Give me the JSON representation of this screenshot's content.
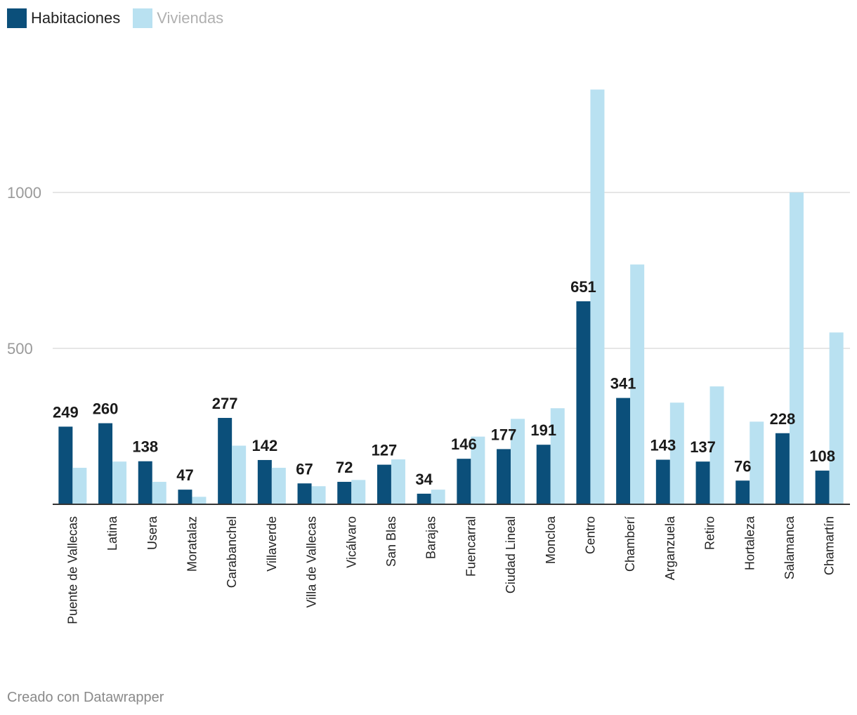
{
  "legend": {
    "series1": {
      "label": "Habitaciones",
      "color": "#0b4f7a",
      "text_color": "#222222"
    },
    "series2": {
      "label": "Viviendas",
      "color": "#b9e1f1",
      "text_color": "#b0b0b0"
    }
  },
  "footer": {
    "credit": "Creado con Datawrapper"
  },
  "chart_data": {
    "type": "bar",
    "title": "",
    "xlabel": "",
    "ylabel": "",
    "ylim": [
      0,
      1350
    ],
    "yticks": [
      500,
      1000
    ],
    "grid": true,
    "legend_position": "top-left",
    "categories": [
      "Puente de Vallecas",
      "Latina",
      "Usera",
      "Moratalaz",
      "Carabanchel",
      "Villaverde",
      "Villa de Vallecas",
      "Vicálvaro",
      "San Blas",
      "Barajas",
      "Fuencarral",
      "Ciudad Lineal",
      "Moncloa",
      "Centro",
      "Chamberí",
      "Arganzuela",
      "Retiro",
      "Hortaleza",
      "Salamanca",
      "Chamartín"
    ],
    "series": [
      {
        "name": "Habitaciones",
        "color": "#0b4f7a",
        "labeled": true,
        "values": [
          249,
          260,
          138,
          47,
          277,
          142,
          67,
          72,
          127,
          34,
          146,
          177,
          191,
          651,
          341,
          143,
          137,
          76,
          228,
          108
        ]
      },
      {
        "name": "Viviendas",
        "color": "#b9e1f1",
        "labeled": false,
        "values": [
          117,
          137,
          72,
          24,
          188,
          117,
          58,
          78,
          144,
          47,
          217,
          274,
          308,
          1330,
          769,
          326,
          378,
          265,
          1000,
          551
        ]
      }
    ]
  }
}
